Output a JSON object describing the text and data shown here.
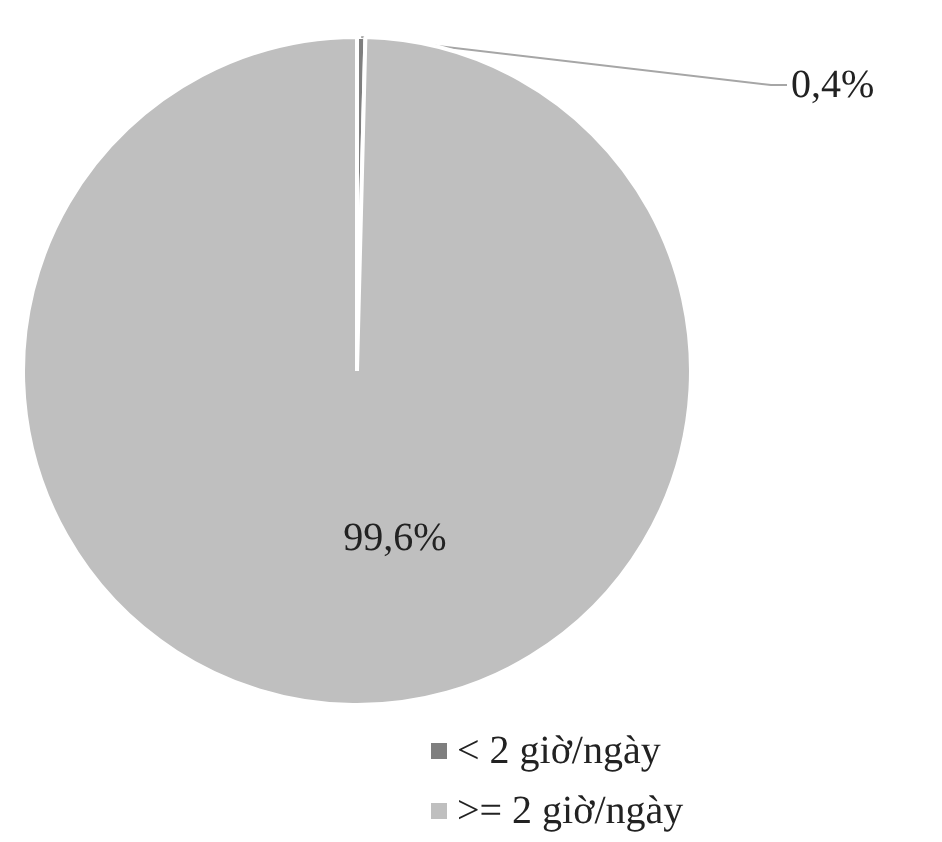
{
  "chart_data": {
    "type": "pie",
    "categories": [
      "< 2 giờ/ngày",
      ">= 2 giờ/ngày"
    ],
    "values": [
      0.4,
      99.6
    ],
    "colors": [
      "#7f7f7f",
      "#bfbfbf"
    ],
    "value_labels": [
      "0,4%",
      "99,6%"
    ],
    "legend": "bottom"
  }
}
